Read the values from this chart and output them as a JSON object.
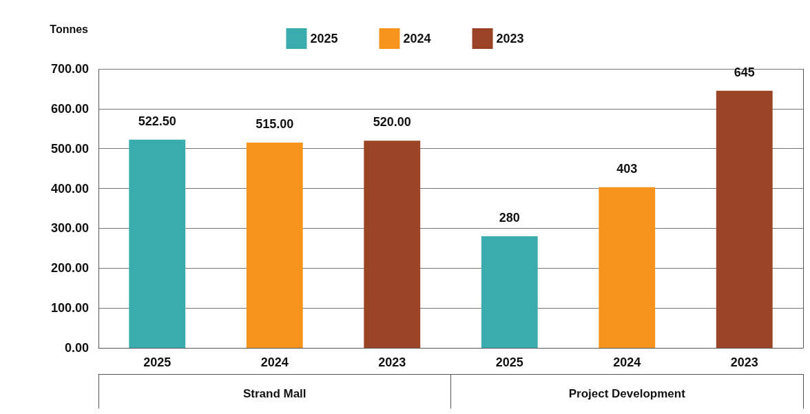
{
  "chart_data": {
    "type": "bar",
    "ylabel": "Tonnes",
    "categories": [
      "2025",
      "2024",
      "2023",
      "2025",
      "2024",
      "2023"
    ],
    "series": [
      {
        "name": "2025",
        "color": "#3aacae",
        "values": [
          522.5,
          null,
          null,
          280,
          null,
          null
        ],
        "value_labels": [
          "522.50",
          null,
          null,
          "280",
          null,
          null
        ]
      },
      {
        "name": "2024",
        "color": "#f7941d",
        "values": [
          null,
          515,
          null,
          null,
          403,
          null
        ],
        "value_labels": [
          null,
          "515.00",
          null,
          null,
          "403",
          null
        ]
      },
      {
        "name": "2023",
        "color": "#9b4425",
        "values": [
          null,
          null,
          520,
          null,
          null,
          645
        ],
        "value_labels": [
          null,
          null,
          "520.00",
          null,
          null,
          "645"
        ]
      }
    ],
    "annotations": [
      "Strand Mall",
      "Project Development"
    ],
    "ylim": [
      0,
      700
    ],
    "yticks": [
      {
        "value": 0,
        "label": "0.00"
      },
      {
        "value": 100,
        "label": "100.00"
      },
      {
        "value": 200,
        "label": "200.00"
      },
      {
        "value": 300,
        "label": "300.00"
      },
      {
        "value": 400,
        "label": "400.00"
      },
      {
        "value": 500,
        "label": "500.00"
      },
      {
        "value": 600,
        "label": "600.00"
      },
      {
        "value": 700,
        "label": "700.00"
      }
    ],
    "grid": "y",
    "legend": "top"
  }
}
